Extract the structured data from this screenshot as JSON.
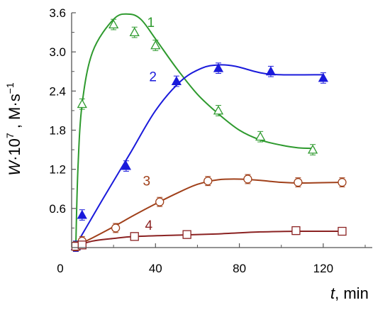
{
  "chart_data": {
    "type": "line",
    "xlabel": "t, min",
    "xlabel_var": "t",
    "xlabel_unit": ", min",
    "ylabel": "W·10⁷ , M·s⁻¹",
    "ylabel_var": "W",
    "ylabel_mid": "·10",
    "ylabel_exp": "7",
    "ylabel_unit": " , M·s",
    "ylabel_unit_exp": "−1",
    "xlim": [
      0,
      140
    ],
    "ylim": [
      0,
      3.6
    ],
    "x_ticks": [
      "0",
      "40",
      "80",
      "120"
    ],
    "y_ticks": [
      "0.6",
      "1.2",
      "1.8",
      "2.4",
      "3.0",
      "3.6"
    ],
    "grid": false,
    "series": [
      {
        "name": "1",
        "color": "#2e9a2e",
        "marker": "triangle-open",
        "points": [
          [
            2,
            0.02
          ],
          [
            5,
            2.2
          ],
          [
            20,
            3.42
          ],
          [
            30,
            3.3
          ],
          [
            40,
            3.1
          ],
          [
            70,
            2.1
          ],
          [
            90,
            1.7
          ],
          [
            115,
            1.5
          ]
        ],
        "error": 0.08,
        "curve": [
          [
            2,
            0.02
          ],
          [
            3,
            1.2
          ],
          [
            5,
            2.2
          ],
          [
            10,
            3.0
          ],
          [
            20,
            3.5
          ],
          [
            27,
            3.58
          ],
          [
            33,
            3.5
          ],
          [
            40,
            3.2
          ],
          [
            50,
            2.75
          ],
          [
            60,
            2.35
          ],
          [
            70,
            2.05
          ],
          [
            80,
            1.8
          ],
          [
            90,
            1.65
          ],
          [
            100,
            1.57
          ],
          [
            108,
            1.53
          ],
          [
            116,
            1.52
          ]
        ]
      },
      {
        "name": "2",
        "color": "#1a1adb",
        "marker": "triangle-filled",
        "points": [
          [
            2,
            0.02
          ],
          [
            5,
            0.5
          ],
          [
            26,
            1.25
          ],
          [
            50,
            2.55
          ],
          [
            70,
            2.75
          ],
          [
            95,
            2.7
          ],
          [
            120,
            2.6
          ]
        ],
        "error": 0.08,
        "curve": [
          [
            2,
            0.02
          ],
          [
            5,
            0.2
          ],
          [
            15,
            0.75
          ],
          [
            28,
            1.45
          ],
          [
            40,
            2.1
          ],
          [
            52,
            2.55
          ],
          [
            62,
            2.75
          ],
          [
            70,
            2.8
          ],
          [
            78,
            2.78
          ],
          [
            90,
            2.68
          ],
          [
            100,
            2.65
          ],
          [
            120,
            2.65
          ]
        ]
      },
      {
        "name": "3",
        "color": "#a0401a",
        "marker": "circle-open",
        "points": [
          [
            2,
            0.02
          ],
          [
            5,
            0.1
          ],
          [
            21,
            0.3
          ],
          [
            42,
            0.7
          ],
          [
            65,
            1.02
          ],
          [
            84,
            1.05
          ],
          [
            108,
            1.0
          ],
          [
            129,
            1.0
          ]
        ],
        "error": 0.07,
        "curve": [
          [
            2,
            0.02
          ],
          [
            10,
            0.15
          ],
          [
            20,
            0.32
          ],
          [
            30,
            0.5
          ],
          [
            40,
            0.67
          ],
          [
            50,
            0.83
          ],
          [
            60,
            0.97
          ],
          [
            70,
            1.04
          ],
          [
            80,
            1.05
          ],
          [
            90,
            1.03
          ],
          [
            100,
            1.0
          ],
          [
            110,
            0.99
          ],
          [
            129,
            1.0
          ]
        ]
      },
      {
        "name": "4",
        "color": "#8b2222",
        "marker": "square-open",
        "points": [
          [
            2,
            0.02
          ],
          [
            5,
            0.04
          ],
          [
            30,
            0.17
          ],
          [
            55,
            0.2
          ],
          [
            107,
            0.26
          ],
          [
            129,
            0.25
          ]
        ],
        "error": 0.06,
        "curve": [
          [
            2,
            0.02
          ],
          [
            10,
            0.1
          ],
          [
            20,
            0.14
          ],
          [
            30,
            0.17
          ],
          [
            50,
            0.19
          ],
          [
            70,
            0.21
          ],
          [
            90,
            0.24
          ],
          [
            110,
            0.25
          ],
          [
            129,
            0.25
          ]
        ]
      }
    ]
  }
}
